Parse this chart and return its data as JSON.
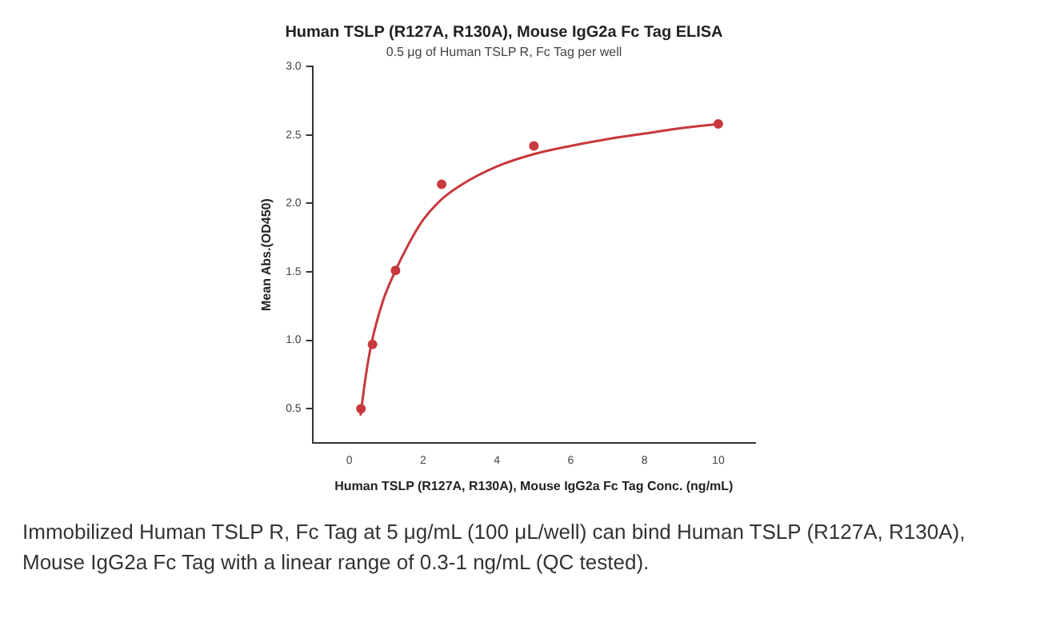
{
  "chart_data": {
    "type": "scatter",
    "title": "Human TSLP (R127A, R130A), Mouse IgG2a Fc Tag ELISA",
    "subtitle": "0.5 μg of Human TSLP R, Fc Tag per well",
    "xlabel": "Human TSLP (R127A, R130A), Mouse IgG2a Fc Tag Conc. (ng/mL)",
    "ylabel": "Mean Abs.(OD450)",
    "annotations": [
      "Immobilized Human TSLP R, Fc Tag at 5 μg/mL (100 μL/well) can bind Human TSLP (R127A, R130A), Mouse IgG2a Fc Tag with a linear range of 0.3-1 ng/mL (QC tested)."
    ],
    "series": [
      {
        "type": "scatter",
        "color": "#c8383c",
        "marker": "circle",
        "x": [
          0.3125,
          0.625,
          1.25,
          2.5,
          5,
          10
        ],
        "values": [
          0.5,
          0.97,
          1.51,
          2.14,
          2.42,
          2.58
        ]
      },
      {
        "type": "line",
        "color": "#c8383c",
        "marker": "none",
        "x": [
          0.3,
          0.45,
          0.6,
          0.9,
          1.2,
          1.6,
          2,
          2.5,
          3,
          4,
          5,
          6,
          7,
          8,
          9,
          10
        ],
        "values": [
          0.45,
          0.75,
          0.98,
          1.28,
          1.48,
          1.7,
          1.88,
          2.03,
          2.13,
          2.27,
          2.36,
          2.42,
          2.47,
          2.51,
          2.55,
          2.58
        ]
      }
    ],
    "xlim": [
      -1,
      11
    ],
    "xticks": [
      0,
      2,
      4,
      6,
      8,
      10
    ],
    "ylim": [
      0.25,
      3.0
    ],
    "yticks": [
      0.5,
      {
        "value": 1,
        "label": "1.0"
      },
      1.5,
      {
        "value": 2,
        "label": "2.0"
      },
      2.5,
      {
        "value": 3,
        "label": "3.0"
      }
    ],
    "grid": false,
    "legend": false
  }
}
